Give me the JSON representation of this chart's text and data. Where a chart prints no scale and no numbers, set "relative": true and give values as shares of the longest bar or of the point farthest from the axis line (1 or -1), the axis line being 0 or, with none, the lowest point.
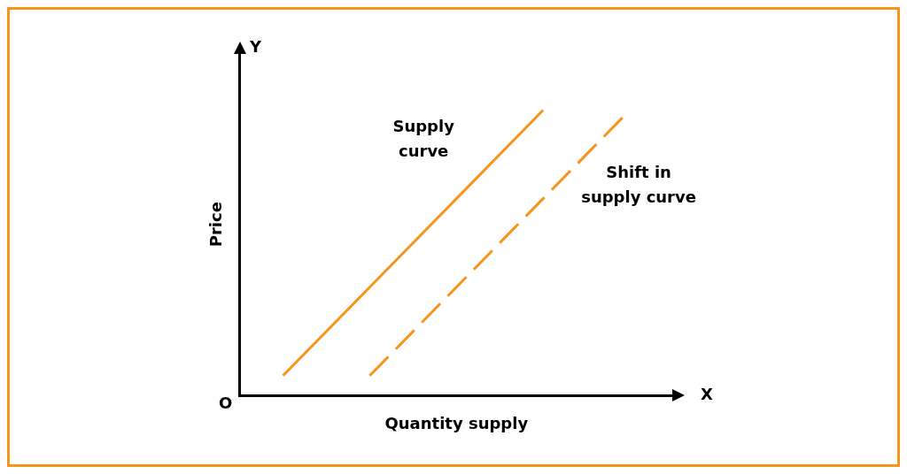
{
  "chart_data": {
    "type": "line",
    "relative": true,
    "xlabel": "Quantity supply",
    "ylabel": "Price",
    "categories": [
      null,
      null,
      null,
      null,
      null
    ],
    "series": [
      {
        "name": "Supply curve",
        "color": "#f7941d",
        "line_style": "solid",
        "values": [
          0.07,
          0.38,
          0.69,
          1,
          null
        ]
      },
      {
        "name": "Shift in supply curve",
        "color": "#f7941d",
        "line_style": "dashed",
        "values": [
          null,
          0.07,
          0.38,
          0.69,
          1
        ]
      }
    ],
    "annotations": [
      "Y",
      "X",
      "O"
    ],
    "grid": false,
    "legend": false,
    "marker": "none"
  }
}
